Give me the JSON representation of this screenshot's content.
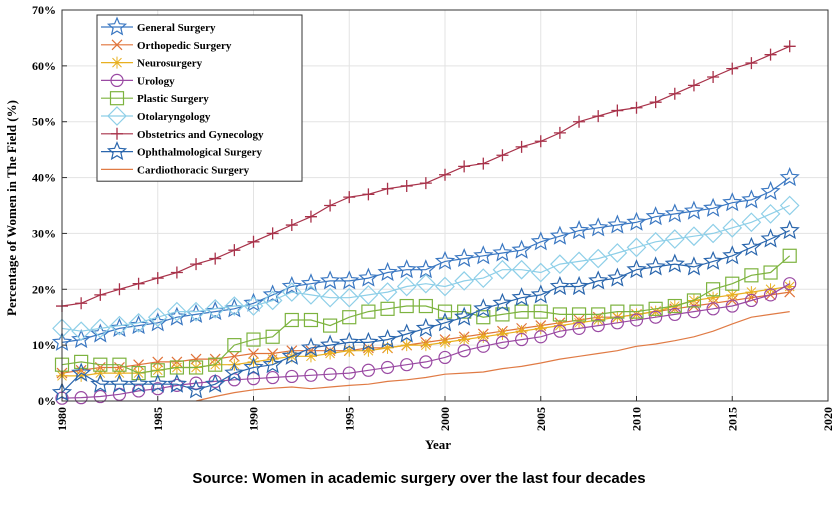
{
  "chart_data": {
    "type": "line",
    "xlabel": "Year",
    "ylabel": "Percentage of Women in The Field (%)",
    "xlim": [
      1980,
      2020
    ],
    "ylim": [
      0,
      70
    ],
    "x_ticks": [
      "1980",
      "1985",
      "1990",
      "1995",
      "2000",
      "2005",
      "2010",
      "2015",
      "2020"
    ],
    "y_ticks": [
      "0%",
      "10%",
      "20%",
      "30%",
      "40%",
      "50%",
      "60%",
      "70%"
    ],
    "legend_position": "top-left",
    "x": [
      1980,
      1981,
      1982,
      1983,
      1984,
      1985,
      1986,
      1987,
      1988,
      1989,
      1990,
      1991,
      1992,
      1993,
      1994,
      1995,
      1996,
      1997,
      1998,
      1999,
      2000,
      2001,
      2002,
      2003,
      2004,
      2005,
      2006,
      2007,
      2008,
      2009,
      2010,
      2011,
      2012,
      2013,
      2014,
      2015,
      2016,
      2017,
      2018
    ],
    "series": [
      {
        "name": "General Surgery",
        "marker": "star",
        "color": "#3b78c2",
        "values": [
          10.5,
          11,
          12,
          13,
          13.5,
          14,
          15,
          15.5,
          16,
          16.5,
          17.5,
          19,
          20.5,
          21,
          21.5,
          21.5,
          22,
          23,
          23.5,
          23.5,
          25,
          25.5,
          26,
          26.5,
          27,
          28.5,
          29.5,
          30.5,
          31,
          31.5,
          32,
          33,
          33.5,
          34,
          34.5,
          35.5,
          36,
          37.5,
          40
        ]
      },
      {
        "name": "Orthopedic Surgery",
        "marker": "x",
        "color": "#e0733a",
        "values": [
          5,
          5.5,
          6,
          6,
          6.5,
          7,
          7,
          7.5,
          7.5,
          8,
          8.5,
          8.5,
          9,
          9,
          9,
          9,
          9.5,
          9.5,
          10,
          10.5,
          11,
          11.5,
          12,
          12.5,
          13,
          13.5,
          14,
          14.5,
          15,
          15,
          15.5,
          16,
          16.5,
          17,
          17.5,
          18,
          18.5,
          19,
          19.5
        ]
      },
      {
        "name": "Neurosurgery",
        "marker": "asterisk",
        "color": "#e8b020",
        "values": [
          4.5,
          4.5,
          5,
          5,
          5,
          5.5,
          6,
          6,
          6.5,
          6.5,
          7,
          7.5,
          8,
          8,
          8.5,
          9,
          9,
          9.5,
          10,
          10,
          10.5,
          11,
          11.5,
          12,
          12.5,
          13,
          13.5,
          14,
          14.5,
          15,
          15.5,
          16,
          17,
          18,
          18.5,
          19,
          19.5,
          20,
          20.5
        ]
      },
      {
        "name": "Urology",
        "marker": "circle",
        "color": "#9a4aa3",
        "values": [
          0.5,
          0.6,
          0.8,
          1.2,
          1.8,
          2.2,
          2.8,
          3.2,
          3.5,
          3.8,
          4,
          4.2,
          4.4,
          4.6,
          4.8,
          5,
          5.5,
          6,
          6.5,
          7,
          7.8,
          9,
          9.8,
          10.5,
          11,
          11.5,
          12.5,
          13,
          13.5,
          14,
          14.5,
          15,
          15.5,
          16,
          16.5,
          17,
          18,
          19,
          21
        ]
      },
      {
        "name": "Plastic Surgery",
        "marker": "square",
        "color": "#7db33f",
        "values": [
          6.5,
          7,
          6.5,
          6.5,
          5,
          5.5,
          6,
          6,
          6.5,
          10,
          11,
          11.5,
          14.5,
          14.5,
          13.5,
          15,
          16,
          16.5,
          17,
          17,
          16,
          16,
          15,
          15.5,
          16,
          16,
          15.5,
          15.5,
          15.5,
          16,
          16,
          16.5,
          17,
          18,
          20,
          21,
          22.5,
          23,
          26
        ]
      },
      {
        "name": "Otolaryngology",
        "marker": "diamond",
        "color": "#8ecfe8",
        "values": [
          13,
          12.5,
          13,
          13.5,
          14,
          15,
          16,
          16,
          16.5,
          17,
          17,
          18,
          19.5,
          19,
          18.5,
          18.5,
          19,
          19.5,
          20.5,
          21,
          20.5,
          21.5,
          22,
          23.5,
          23.5,
          23,
          24.5,
          25,
          25.5,
          26.5,
          27.5,
          28.5,
          29,
          29.5,
          30,
          31,
          32,
          33.5,
          35
        ]
      },
      {
        "name": "Obstetrics and Gynecology",
        "marker": "plus",
        "color": "#a8324a",
        "values": [
          17,
          17.5,
          19,
          20,
          21,
          22,
          23,
          24.5,
          25.5,
          27,
          28.5,
          30,
          31.5,
          33,
          35,
          36.5,
          37,
          38,
          38.5,
          39,
          40.5,
          42,
          42.5,
          44,
          45.5,
          46.5,
          48,
          50,
          51,
          52,
          52.5,
          53.5,
          55,
          56.5,
          58,
          59.5,
          60.5,
          62,
          63.5
        ]
      },
      {
        "name": "Ophthalmological Surgery",
        "marker": "star",
        "color": "#2a66ad",
        "values": [
          1.5,
          5,
          3,
          3,
          3,
          3,
          3,
          2,
          3,
          5,
          6,
          6.5,
          8,
          9.5,
          10,
          10.5,
          10.5,
          11,
          12,
          13,
          14,
          15,
          16.5,
          17.5,
          18.5,
          19,
          20.5,
          20.5,
          21.5,
          22,
          23.5,
          24,
          24.5,
          24,
          25,
          26,
          27.5,
          29,
          30.5
        ]
      },
      {
        "name": "Cardiothoracic Surgery",
        "marker": "none",
        "color": "#e07b45",
        "values": [
          null,
          null,
          null,
          null,
          null,
          null,
          null,
          0,
          0.8,
          1.5,
          2,
          2.3,
          2.5,
          2.2,
          2.5,
          2.8,
          3,
          3.5,
          3.8,
          4.2,
          4.8,
          5,
          5.2,
          5.8,
          6.2,
          6.8,
          7.5,
          8,
          8.5,
          9,
          9.8,
          10.2,
          10.8,
          11.5,
          12.5,
          13.8,
          15,
          15.5,
          16
        ]
      }
    ]
  },
  "source_text": "Source: Women in academic surgery over the last four decades"
}
